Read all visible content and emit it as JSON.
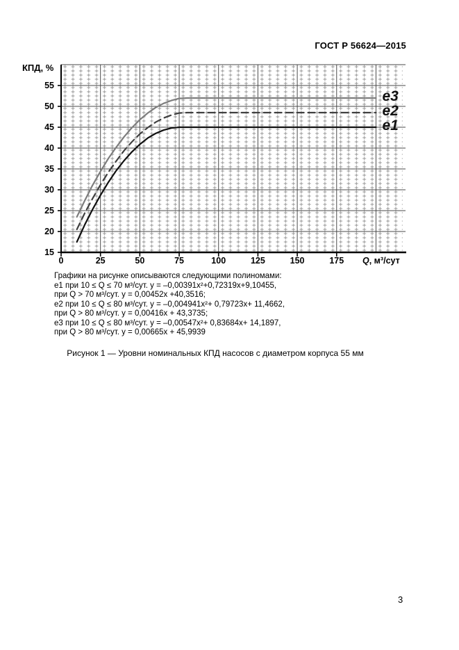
{
  "page": {
    "header": "ГОСТ Р 56624—2015",
    "page_number": "3"
  },
  "chart_data": {
    "type": "line",
    "title": "",
    "ylabel": "КПД, %",
    "xlabel_var": "Q",
    "xlabel_unit": ", м³/сут",
    "xlim": [
      0,
      217
    ],
    "ylim": [
      15,
      60
    ],
    "x_ticks": [
      0,
      25,
      50,
      75,
      100,
      125,
      150,
      175
    ],
    "x_grid": [
      25,
      50,
      75,
      100,
      125,
      150,
      175,
      200
    ],
    "y_ticks": [
      15,
      20,
      25,
      30,
      35,
      40,
      45,
      50,
      55
    ],
    "y_grid": [
      20,
      25,
      30,
      35,
      40,
      45,
      50,
      55,
      60
    ],
    "grid": "major solid lines + fine dotted minor cross pattern",
    "legend_position": "labels at right ends of curves",
    "series": [
      {
        "name": "e3",
        "line": "solid",
        "color": "#7d7d7d",
        "points": [
          [
            10,
            23.5
          ],
          [
            15,
            27.4
          ],
          [
            20,
            31.1
          ],
          [
            25,
            34.4
          ],
          [
            30,
            37.5
          ],
          [
            35,
            40.2
          ],
          [
            40,
            42.7
          ],
          [
            45,
            44.9
          ],
          [
            50,
            46.8
          ],
          [
            55,
            48.4
          ],
          [
            60,
            49.7
          ],
          [
            65,
            50.7
          ],
          [
            70,
            51.4
          ],
          [
            75,
            51.9
          ],
          [
            80,
            52
          ],
          [
            100,
            52
          ],
          [
            125,
            52
          ],
          [
            150,
            52
          ],
          [
            175,
            52
          ],
          [
            200,
            52
          ]
        ]
      },
      {
        "name": "e2",
        "line": "dashed",
        "color": "#404040",
        "points": [
          [
            10,
            20.5
          ],
          [
            15,
            24.4
          ],
          [
            20,
            27.9
          ],
          [
            25,
            31.2
          ],
          [
            30,
            34.2
          ],
          [
            35,
            36.9
          ],
          [
            40,
            39.4
          ],
          [
            45,
            41.5
          ],
          [
            50,
            43.4
          ],
          [
            55,
            44.9
          ],
          [
            60,
            46.2
          ],
          [
            65,
            47.2
          ],
          [
            70,
            47.9
          ],
          [
            75,
            48.4
          ],
          [
            80,
            48.5
          ],
          [
            100,
            48.5
          ],
          [
            125,
            48.5
          ],
          [
            150,
            48.5
          ],
          [
            175,
            48.5
          ],
          [
            200,
            48.5
          ]
        ]
      },
      {
        "name": "e1",
        "line": "solid",
        "color": "#101010",
        "points": [
          [
            10,
            17.5
          ],
          [
            15,
            21.6
          ],
          [
            20,
            25.3
          ],
          [
            25,
            28.7
          ],
          [
            30,
            31.8
          ],
          [
            35,
            34.6
          ],
          [
            40,
            37.0
          ],
          [
            45,
            39.1
          ],
          [
            50,
            40.9
          ],
          [
            55,
            42.4
          ],
          [
            60,
            43.5
          ],
          [
            65,
            44.3
          ],
          [
            70,
            44.8
          ],
          [
            75,
            45
          ],
          [
            100,
            45
          ],
          [
            125,
            45
          ],
          [
            150,
            45
          ],
          [
            175,
            45
          ],
          [
            200,
            45
          ]
        ]
      }
    ]
  },
  "description": {
    "lines": [
      "Графики на рисунке описываются следующими полиномами:",
      "е1 при 10 ≤ Q ≤ 70 м³/сут.  y = –0,00391x²+0,72319x+9,10455,",
      "при Q > 70 м³/сут. y = 0,00452x +40,3516;",
      "е2 при 10 ≤ Q ≤ 80 м³/сут.  y = –0,004941x²+ 0,79723x+ 11,4662,",
      "при Q > 80 м³/сут. y = 0,00416x + 43,3735;",
      "е3 при 10 ≤ Q ≤ 80 м³/сут. y = –0,00547x²+ 0,83684x+ 14,1897,",
      "при Q > 80 м³/сут. y = 0,00665x + 45,9939"
    ]
  },
  "caption": "Рисунок 1 — Уровни номинальных КПД насосов с диаметром корпуса 55 мм"
}
